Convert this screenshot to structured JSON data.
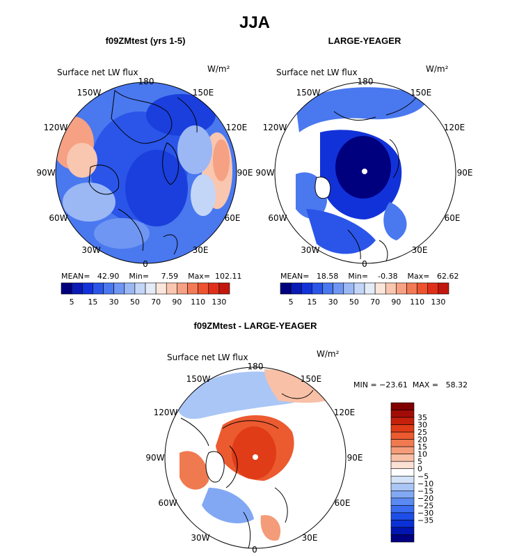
{
  "figure_title": "JJA",
  "colors": {
    "blue_scale": [
      "#00007f",
      "#0a1ab4",
      "#1232d9",
      "#2a55e8",
      "#4a78ef",
      "#6f96f2",
      "#9bb8f5",
      "#c4d6f7",
      "#e4ecf8"
    ],
    "red_scale": [
      "#fbe6dc",
      "#f9c6b0",
      "#f6a183",
      "#f27a56",
      "#ee5330",
      "#e0301a",
      "#c2170e",
      "#9e0a06",
      "#7a0000"
    ],
    "diff_scale": [
      "#000080",
      "#0015b0",
      "#0a30d6",
      "#1e4ee8",
      "#3a6cf0",
      "#5a8af2",
      "#82a8f4",
      "#aac6f6",
      "#d4e2f8",
      "#ffffff",
      "#fbe0d4",
      "#f8c0a6",
      "#f49c7a",
      "#f07a50",
      "#ec5a30",
      "#e03c18",
      "#c4200c",
      "#a20c06",
      "#800000"
    ]
  },
  "chart_data": [
    {
      "type": "heatmap",
      "name": "polar-map-left",
      "title": "f09ZMtest (yrs 1-5)",
      "variable_label": "Surface net LW flux",
      "units_label": "W/m²",
      "longitude_labels": [
        "180",
        "150E",
        "120E",
        "90E",
        "60E",
        "30E",
        "0",
        "30W",
        "60W",
        "90W",
        "120W",
        "150W"
      ],
      "stats_text": "MEAN=   42.90    Min=     7.59    Max=  102.11",
      "colorbar": {
        "levels": [
          5,
          10,
          15,
          20,
          30,
          40,
          50,
          60,
          70,
          80,
          90,
          100,
          110,
          120,
          130
        ],
        "tick_labels": [
          "5",
          "15",
          "30",
          "50",
          "70",
          "90",
          "110",
          "130"
        ]
      }
    },
    {
      "type": "heatmap",
      "name": "polar-map-right",
      "title": "LARGE-YEAGER",
      "variable_label": "Surface net LW flux",
      "units_label": "W/m²",
      "longitude_labels": [
        "180",
        "150E",
        "120E",
        "90E",
        "60E",
        "30E",
        "0",
        "30W",
        "60W",
        "90W",
        "120W",
        "150W"
      ],
      "stats_text": "MEAN=   18.58    Min=    -0.38    Max=   62.62",
      "colorbar": {
        "levels": [
          5,
          10,
          15,
          20,
          30,
          40,
          50,
          60,
          70,
          80,
          90,
          100,
          110,
          120,
          130
        ],
        "tick_labels": [
          "5",
          "15",
          "30",
          "50",
          "70",
          "90",
          "110",
          "130"
        ]
      }
    },
    {
      "type": "heatmap",
      "name": "polar-map-diff",
      "title": "f09ZMtest - LARGE-YEAGER",
      "variable_label": "Surface net LW flux",
      "units_label": "W/m²",
      "longitude_labels": [
        "180",
        "150E",
        "120E",
        "90E",
        "60E",
        "30E",
        "0",
        "30W",
        "60W",
        "90W",
        "120W",
        "150W"
      ],
      "stats_text": "MIN = −23.61  MAX =   58.32",
      "colorbar": {
        "tick_labels": [
          "35",
          "30",
          "25",
          "20",
          "15",
          "10",
          "5",
          "0",
          "−5",
          "−10",
          "−15",
          "−20",
          "−25",
          "−30",
          "−35"
        ]
      }
    }
  ]
}
